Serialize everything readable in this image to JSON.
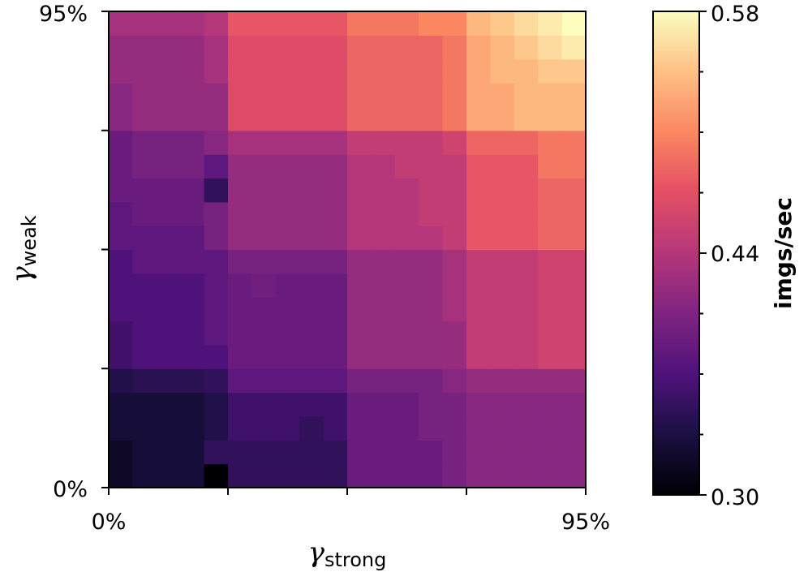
{
  "chart_data": {
    "type": "heatmap",
    "xlabel": {
      "symbol": "γ",
      "subscript": "strong"
    },
    "ylabel": {
      "symbol": "γ",
      "subscript": "weak"
    },
    "x_tick_labels": [
      "0%",
      "95%"
    ],
    "y_tick_labels": [
      "0%",
      "95%"
    ],
    "colorbar": {
      "label": "imgs/sec",
      "min": 0.3,
      "max": 0.58,
      "tick_labels": [
        "0.30",
        "0.44",
        "0.58"
      ],
      "colormap": "magma"
    },
    "grid_size": [
      20,
      20
    ],
    "z_rows_bottom_to_top": [
      [
        0.32,
        0.33,
        0.33,
        0.33,
        0.3,
        0.35,
        0.35,
        0.35,
        0.35,
        0.35,
        0.39,
        0.39,
        0.39,
        0.39,
        0.4,
        0.41,
        0.41,
        0.41,
        0.41,
        0.41
      ],
      [
        0.32,
        0.33,
        0.33,
        0.33,
        0.35,
        0.35,
        0.35,
        0.35,
        0.35,
        0.35,
        0.39,
        0.39,
        0.39,
        0.39,
        0.4,
        0.41,
        0.41,
        0.41,
        0.41,
        0.41
      ],
      [
        0.33,
        0.33,
        0.33,
        0.33,
        0.34,
        0.36,
        0.36,
        0.36,
        0.35,
        0.36,
        0.39,
        0.39,
        0.39,
        0.4,
        0.4,
        0.41,
        0.41,
        0.41,
        0.41,
        0.41
      ],
      [
        0.33,
        0.33,
        0.33,
        0.33,
        0.34,
        0.36,
        0.36,
        0.36,
        0.36,
        0.36,
        0.39,
        0.39,
        0.39,
        0.4,
        0.4,
        0.41,
        0.41,
        0.41,
        0.41,
        0.41
      ],
      [
        0.34,
        0.345,
        0.345,
        0.345,
        0.35,
        0.38,
        0.38,
        0.38,
        0.38,
        0.38,
        0.4,
        0.4,
        0.4,
        0.4,
        0.41,
        0.42,
        0.42,
        0.42,
        0.42,
        0.42
      ],
      [
        0.36,
        0.37,
        0.37,
        0.37,
        0.37,
        0.39,
        0.39,
        0.39,
        0.39,
        0.39,
        0.42,
        0.42,
        0.42,
        0.42,
        0.42,
        0.45,
        0.45,
        0.45,
        0.46,
        0.46
      ],
      [
        0.36,
        0.37,
        0.37,
        0.37,
        0.38,
        0.39,
        0.39,
        0.39,
        0.39,
        0.39,
        0.42,
        0.42,
        0.42,
        0.42,
        0.42,
        0.45,
        0.45,
        0.45,
        0.46,
        0.46
      ],
      [
        0.37,
        0.37,
        0.37,
        0.37,
        0.38,
        0.39,
        0.39,
        0.39,
        0.39,
        0.39,
        0.42,
        0.42,
        0.42,
        0.42,
        0.43,
        0.45,
        0.45,
        0.45,
        0.46,
        0.46
      ],
      [
        0.37,
        0.37,
        0.37,
        0.37,
        0.38,
        0.39,
        0.395,
        0.39,
        0.39,
        0.39,
        0.42,
        0.42,
        0.42,
        0.42,
        0.43,
        0.45,
        0.45,
        0.45,
        0.46,
        0.46
      ],
      [
        0.37,
        0.38,
        0.38,
        0.38,
        0.38,
        0.4,
        0.4,
        0.4,
        0.4,
        0.4,
        0.42,
        0.42,
        0.42,
        0.42,
        0.43,
        0.45,
        0.45,
        0.45,
        0.46,
        0.46
      ],
      [
        0.38,
        0.38,
        0.38,
        0.38,
        0.4,
        0.42,
        0.42,
        0.42,
        0.42,
        0.42,
        0.44,
        0.44,
        0.44,
        0.44,
        0.45,
        0.48,
        0.48,
        0.48,
        0.49,
        0.49
      ],
      [
        0.38,
        0.39,
        0.39,
        0.39,
        0.4,
        0.42,
        0.42,
        0.42,
        0.42,
        0.42,
        0.44,
        0.44,
        0.44,
        0.45,
        0.45,
        0.48,
        0.48,
        0.48,
        0.49,
        0.49
      ],
      [
        0.39,
        0.39,
        0.39,
        0.39,
        0.35,
        0.42,
        0.42,
        0.42,
        0.42,
        0.42,
        0.44,
        0.44,
        0.44,
        0.45,
        0.45,
        0.48,
        0.48,
        0.48,
        0.49,
        0.49
      ],
      [
        0.39,
        0.4,
        0.4,
        0.4,
        0.38,
        0.42,
        0.42,
        0.42,
        0.42,
        0.42,
        0.44,
        0.44,
        0.45,
        0.45,
        0.45,
        0.48,
        0.48,
        0.48,
        0.5,
        0.5
      ],
      [
        0.39,
        0.4,
        0.4,
        0.4,
        0.41,
        0.43,
        0.43,
        0.43,
        0.43,
        0.43,
        0.45,
        0.45,
        0.45,
        0.45,
        0.46,
        0.49,
        0.49,
        0.49,
        0.5,
        0.5
      ],
      [
        0.41,
        0.42,
        0.42,
        0.42,
        0.42,
        0.47,
        0.47,
        0.47,
        0.47,
        0.47,
        0.49,
        0.49,
        0.49,
        0.49,
        0.5,
        0.53,
        0.53,
        0.54,
        0.54,
        0.54
      ],
      [
        0.41,
        0.42,
        0.42,
        0.42,
        0.42,
        0.47,
        0.47,
        0.47,
        0.47,
        0.47,
        0.49,
        0.49,
        0.49,
        0.49,
        0.5,
        0.53,
        0.53,
        0.54,
        0.54,
        0.54
      ],
      [
        0.42,
        0.42,
        0.42,
        0.42,
        0.43,
        0.47,
        0.47,
        0.47,
        0.47,
        0.47,
        0.49,
        0.49,
        0.49,
        0.49,
        0.5,
        0.53,
        0.54,
        0.54,
        0.55,
        0.55
      ],
      [
        0.42,
        0.42,
        0.42,
        0.42,
        0.43,
        0.47,
        0.47,
        0.47,
        0.47,
        0.47,
        0.49,
        0.49,
        0.49,
        0.49,
        0.5,
        0.53,
        0.54,
        0.55,
        0.56,
        0.57
      ],
      [
        0.43,
        0.43,
        0.43,
        0.43,
        0.44,
        0.48,
        0.48,
        0.48,
        0.48,
        0.48,
        0.5,
        0.5,
        0.5,
        0.51,
        0.51,
        0.54,
        0.55,
        0.56,
        0.57,
        0.58
      ]
    ]
  }
}
